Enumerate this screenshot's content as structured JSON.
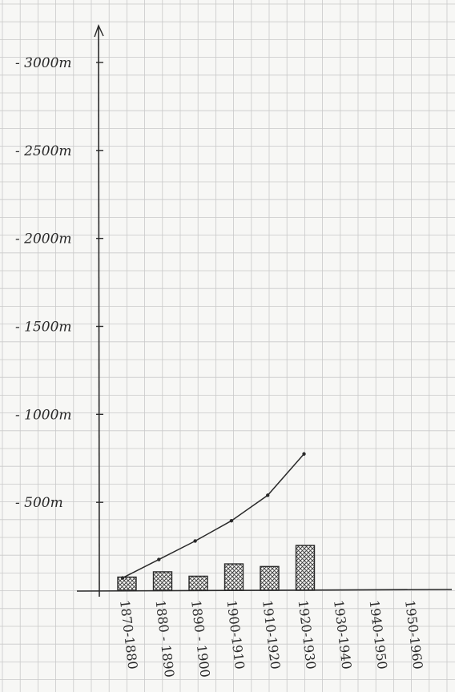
{
  "chart_data": {
    "type": "bar",
    "title": "",
    "xlabel": "",
    "ylabel": "",
    "categories": [
      "1870-1880",
      "1880-1890",
      "1890-1900",
      "1900-1910",
      "1910-1920",
      "1920-1930",
      "1930-1940",
      "1940-1950",
      "1950-1960"
    ],
    "category_labels_as_written": [
      "1870-1880",
      "1880 - 1890",
      "1890 - 1900",
      "1900-1910",
      "1910-1920",
      "1920-1930",
      "1930-1940",
      "1940-1950",
      "1950-1960"
    ],
    "series": [
      {
        "kind": "bar",
        "values": [
          75,
          105,
          80,
          150,
          135,
          255,
          null,
          null,
          null
        ]
      },
      {
        "kind": "line",
        "values": [
          70,
          175,
          280,
          395,
          540,
          775,
          null,
          null,
          null
        ]
      }
    ],
    "y_ticks": [
      {
        "value": 500,
        "label": "- 500m"
      },
      {
        "value": 1000,
        "label": "- 1000m"
      },
      {
        "value": 1500,
        "label": "- 1500m"
      },
      {
        "value": 2000,
        "label": "- 2000m"
      },
      {
        "value": 2500,
        "label": "- 2500m"
      },
      {
        "value": 3000,
        "label": "- 3000m"
      }
    ],
    "ylim": [
      0,
      3000
    ],
    "grid": true,
    "legend": "none",
    "colors": {
      "paper": "#f7f7f5",
      "grid": "#c9c9c9",
      "ink": "#2a2a2a",
      "hatch": "#3a3a3a"
    }
  }
}
